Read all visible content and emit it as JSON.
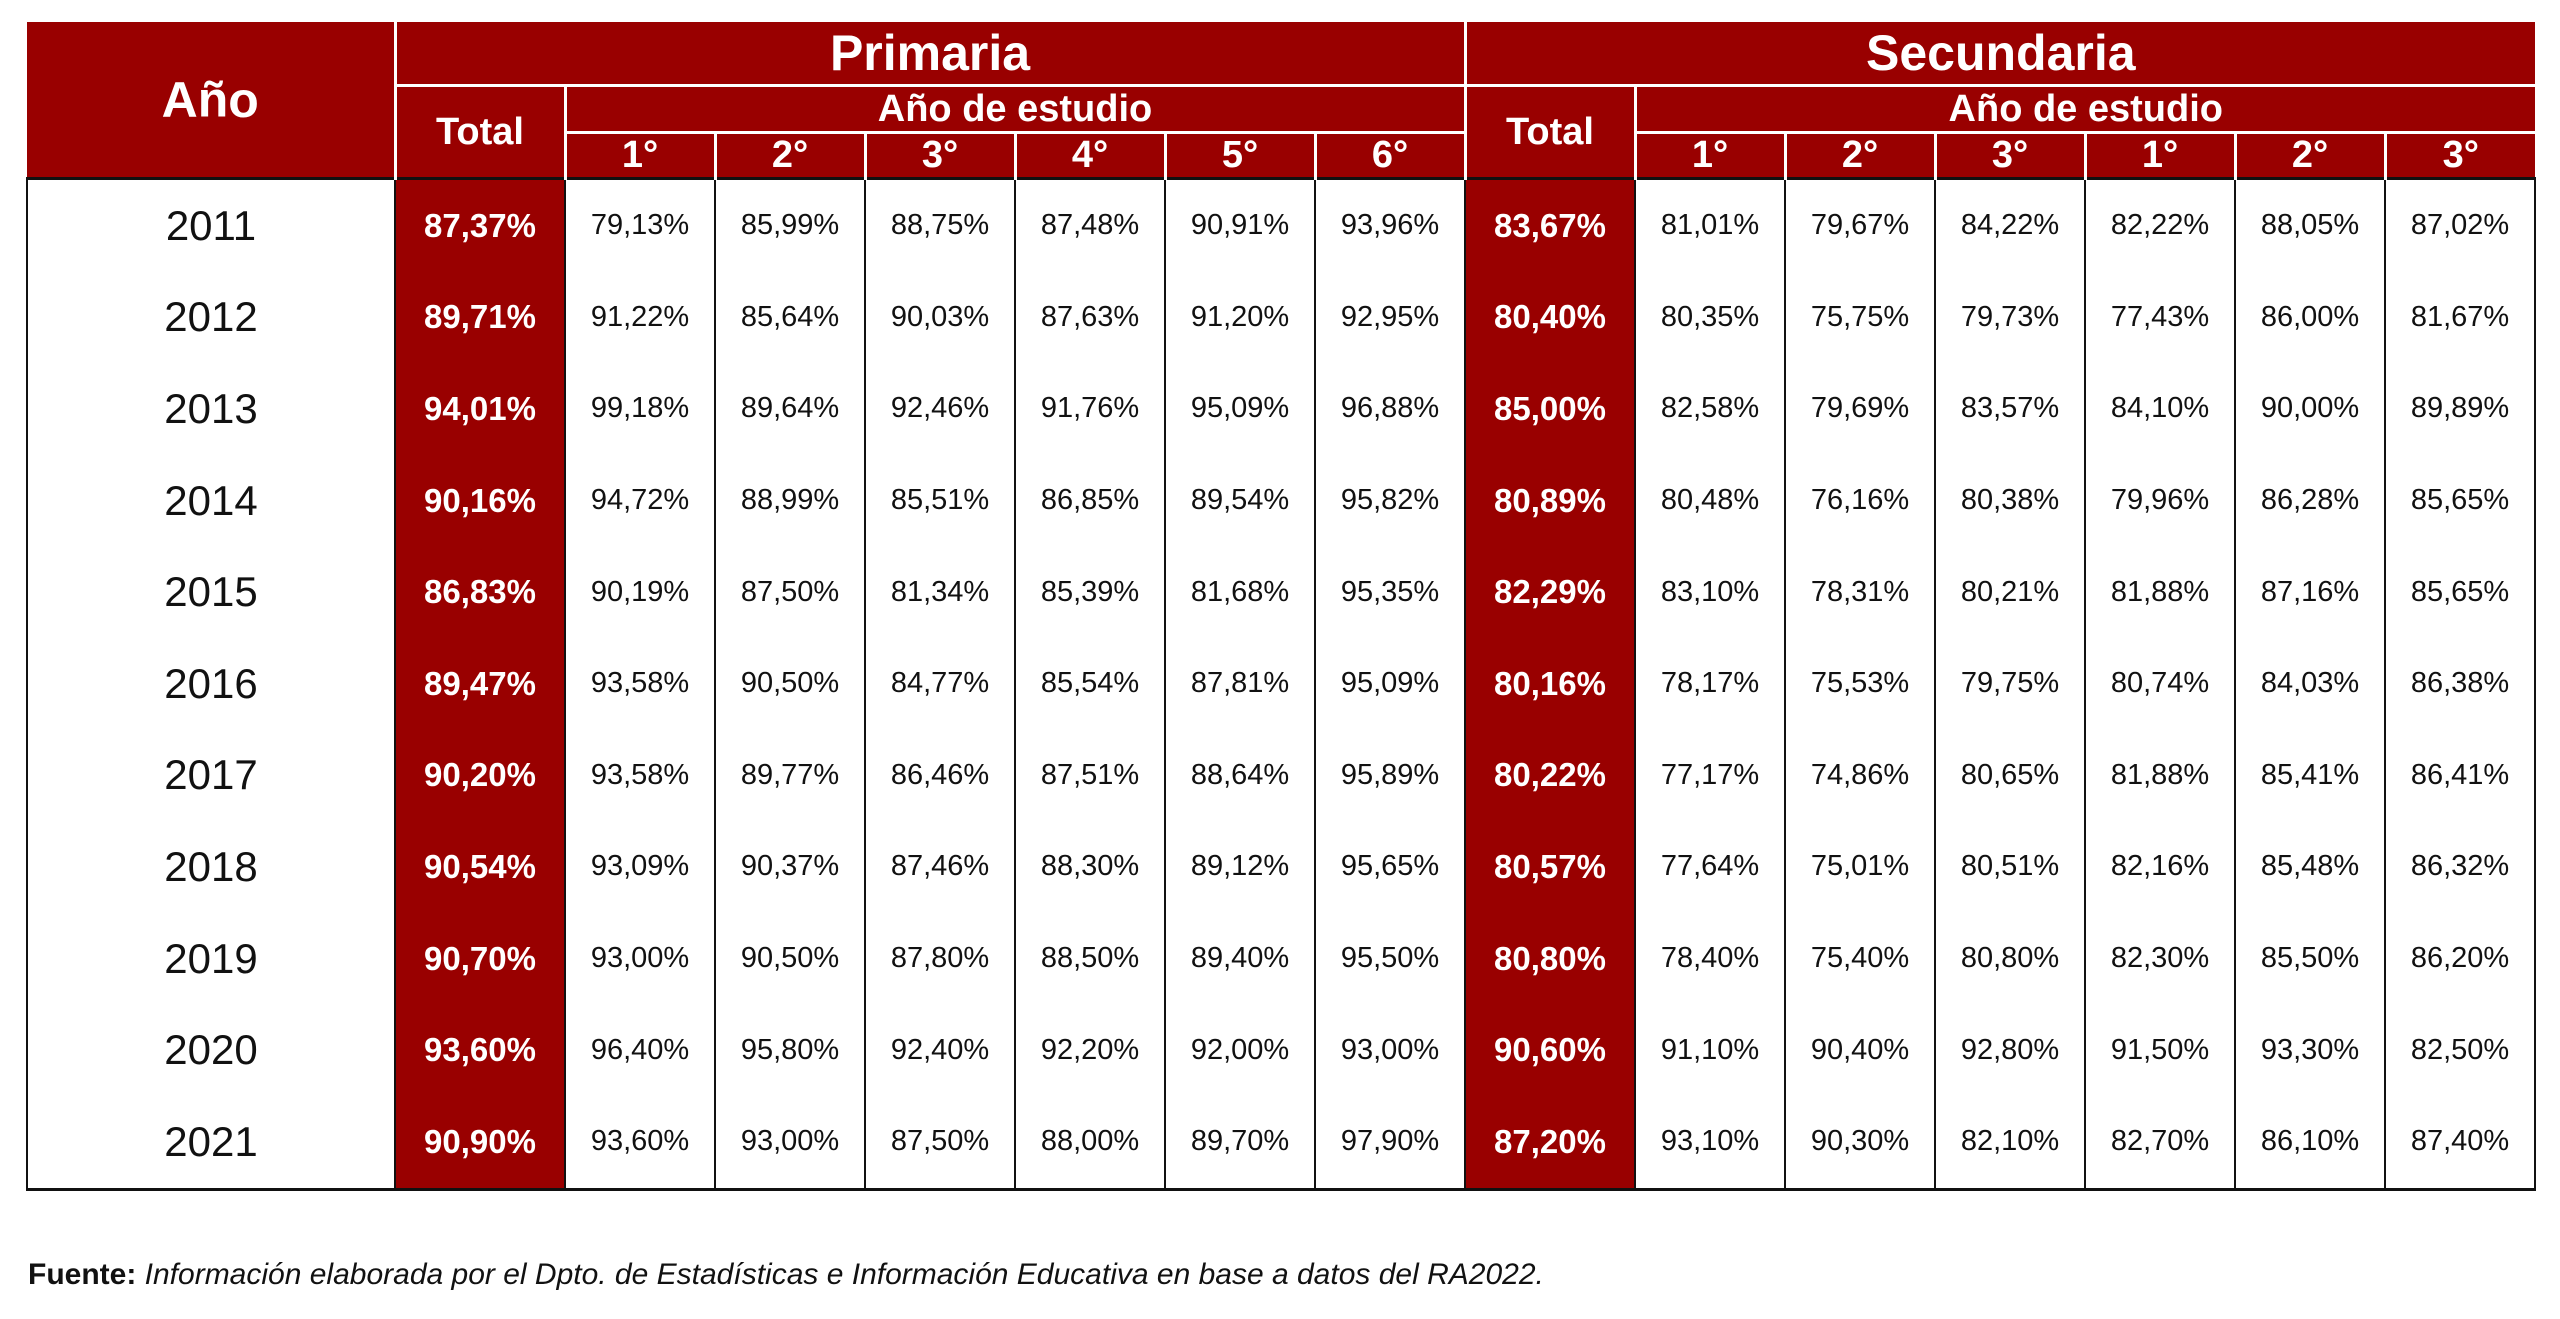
{
  "header": {
    "year": "Año",
    "primaria": "Primaria",
    "secundaria": "Secundaria",
    "total": "Total",
    "anio_estudio": "Año de estudio",
    "primaria_grades": [
      "1°",
      "2°",
      "3°",
      "4°",
      "5°",
      "6°"
    ],
    "secundaria_grades": [
      "1°",
      "2°",
      "3°",
      "1°",
      "2°",
      "3°"
    ]
  },
  "rows": [
    {
      "year": "2011",
      "p_total": "87,37%",
      "p": [
        "79,13%",
        "85,99%",
        "88,75%",
        "87,48%",
        "90,91%",
        "93,96%"
      ],
      "s_total": "83,67%",
      "s": [
        "81,01%",
        "79,67%",
        "84,22%",
        "82,22%",
        "88,05%",
        "87,02%"
      ]
    },
    {
      "year": "2012",
      "p_total": "89,71%",
      "p": [
        "91,22%",
        "85,64%",
        "90,03%",
        "87,63%",
        "91,20%",
        "92,95%"
      ],
      "s_total": "80,40%",
      "s": [
        "80,35%",
        "75,75%",
        "79,73%",
        "77,43%",
        "86,00%",
        "81,67%"
      ]
    },
    {
      "year": "2013",
      "p_total": "94,01%",
      "p": [
        "99,18%",
        "89,64%",
        "92,46%",
        "91,76%",
        "95,09%",
        "96,88%"
      ],
      "s_total": "85,00%",
      "s": [
        "82,58%",
        "79,69%",
        "83,57%",
        "84,10%",
        "90,00%",
        "89,89%"
      ]
    },
    {
      "year": "2014",
      "p_total": "90,16%",
      "p": [
        "94,72%",
        "88,99%",
        "85,51%",
        "86,85%",
        "89,54%",
        "95,82%"
      ],
      "s_total": "80,89%",
      "s": [
        "80,48%",
        "76,16%",
        "80,38%",
        "79,96%",
        "86,28%",
        "85,65%"
      ]
    },
    {
      "year": "2015",
      "p_total": "86,83%",
      "p": [
        "90,19%",
        "87,50%",
        "81,34%",
        "85,39%",
        "81,68%",
        "95,35%"
      ],
      "s_total": "82,29%",
      "s": [
        "83,10%",
        "78,31%",
        "80,21%",
        "81,88%",
        "87,16%",
        "85,65%"
      ]
    },
    {
      "year": "2016",
      "p_total": "89,47%",
      "p": [
        "93,58%",
        "90,50%",
        "84,77%",
        "85,54%",
        "87,81%",
        "95,09%"
      ],
      "s_total": "80,16%",
      "s": [
        "78,17%",
        "75,53%",
        "79,75%",
        "80,74%",
        "84,03%",
        "86,38%"
      ]
    },
    {
      "year": "2017",
      "p_total": "90,20%",
      "p": [
        "93,58%",
        "89,77%",
        "86,46%",
        "87,51%",
        "88,64%",
        "95,89%"
      ],
      "s_total": "80,22%",
      "s": [
        "77,17%",
        "74,86%",
        "80,65%",
        "81,88%",
        "85,41%",
        "86,41%"
      ]
    },
    {
      "year": "2018",
      "p_total": "90,54%",
      "p": [
        "93,09%",
        "90,37%",
        "87,46%",
        "88,30%",
        "89,12%",
        "95,65%"
      ],
      "s_total": "80,57%",
      "s": [
        "77,64%",
        "75,01%",
        "80,51%",
        "82,16%",
        "85,48%",
        "86,32%"
      ]
    },
    {
      "year": "2019",
      "p_total": "90,70%",
      "p": [
        "93,00%",
        "90,50%",
        "87,80%",
        "88,50%",
        "89,40%",
        "95,50%"
      ],
      "s_total": "80,80%",
      "s": [
        "78,40%",
        "75,40%",
        "80,80%",
        "82,30%",
        "85,50%",
        "86,20%"
      ]
    },
    {
      "year": "2020",
      "p_total": "93,60%",
      "p": [
        "96,40%",
        "95,80%",
        "92,40%",
        "92,20%",
        "92,00%",
        "93,00%"
      ],
      "s_total": "90,60%",
      "s": [
        "91,10%",
        "90,40%",
        "92,80%",
        "91,50%",
        "93,30%",
        "82,50%"
      ]
    },
    {
      "year": "2021",
      "p_total": "90,90%",
      "p": [
        "93,60%",
        "93,00%",
        "87,50%",
        "88,00%",
        "89,70%",
        "97,90%"
      ],
      "s_total": "87,20%",
      "s": [
        "93,10%",
        "90,30%",
        "82,10%",
        "82,70%",
        "86,10%",
        "87,40%"
      ]
    }
  ],
  "footer": {
    "label": "Fuente:",
    "text": " Información elaborada por el Dpto. de Estadísticas e Información Educativa en base a datos del RA2022."
  },
  "colors": {
    "header_bg": "#990000",
    "total_bg": "#990000"
  }
}
